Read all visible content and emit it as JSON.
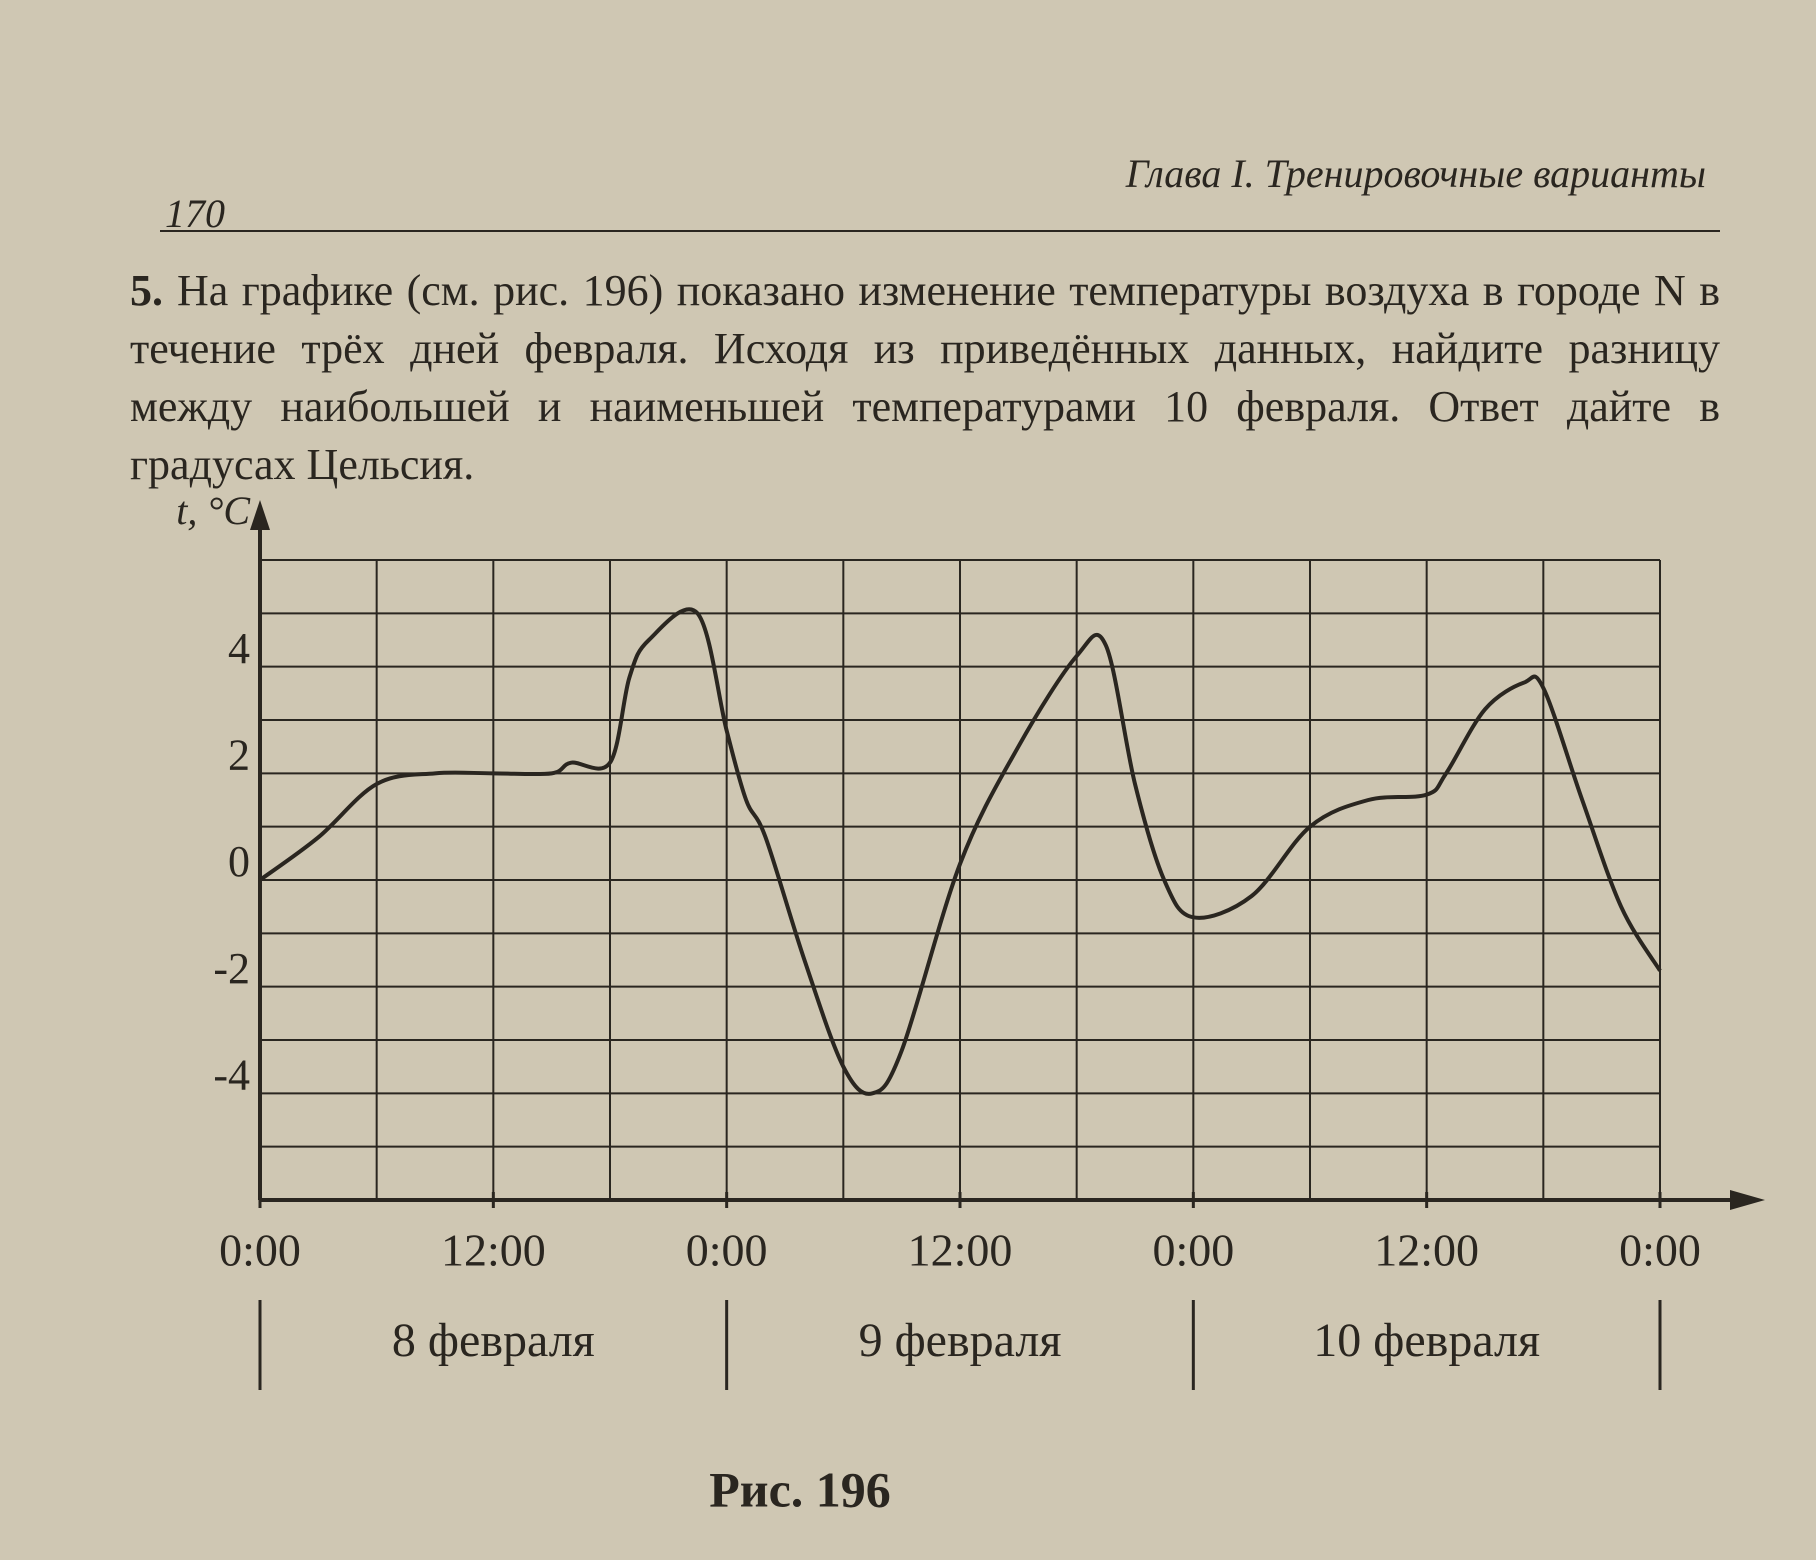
{
  "header": {
    "page_number": "170",
    "chapter": "Глава I. Тренировочные варианты"
  },
  "problem": {
    "number": "5.",
    "text": "На графике (см. рис. 196) показано изменение температуры воздуха в городе N в течение трёх дней февраля. Исходя из приведённых данных, найдите разницу между наибольшей и наименьшей температурами 10 февраля. Ответ дайте в градусах Цельсия."
  },
  "chart_data": {
    "type": "line",
    "y_label": "t, °C",
    "x": [
      0,
      3,
      6,
      9,
      12,
      15,
      16,
      18,
      19,
      20,
      22.5,
      24,
      25,
      26,
      28,
      30,
      31.5,
      33,
      36,
      39,
      42,
      43.5,
      45,
      46.5,
      48,
      51,
      54,
      57,
      60,
      61,
      63,
      65,
      66,
      68,
      70,
      72
    ],
    "series": [
      {
        "color": "#2a2620",
        "values": [
          0,
          0.8,
          1.8,
          2.0,
          2.0,
          2.0,
          2.2,
          2.2,
          3.8,
          4.5,
          5.0,
          2.8,
          1.5,
          0.8,
          -1.5,
          -3.5,
          -4.0,
          -3.2,
          0.3,
          2.5,
          4.2,
          4.4,
          1.8,
          0,
          -0.7,
          -0.3,
          1.0,
          1.5,
          1.6,
          2.0,
          3.2,
          3.7,
          3.6,
          1.5,
          -0.5,
          -1.7
        ]
      }
    ],
    "xlim": [
      0,
      72
    ],
    "ylim": [
      -6,
      6
    ],
    "xticks": [
      {
        "value": 0,
        "label": "0:00"
      },
      {
        "value": 12,
        "label": "12:00"
      },
      {
        "value": 24,
        "label": "0:00"
      },
      {
        "value": 36,
        "label": "12:00"
      },
      {
        "value": 48,
        "label": "0:00"
      },
      {
        "value": 60,
        "label": "12:00"
      },
      {
        "value": 72,
        "label": "0:00"
      }
    ],
    "yticks": [
      -4,
      -2,
      0,
      2,
      4
    ],
    "xgrid": [
      0,
      6,
      12,
      18,
      24,
      30,
      36,
      42,
      48,
      54,
      60,
      66,
      72
    ],
    "ygrid": [
      -6,
      -5,
      -4,
      -3,
      -2,
      -1,
      0,
      1,
      2,
      3,
      4,
      5,
      6
    ],
    "day_labels": [
      "8 февраля",
      "9 февраля",
      "10 февраля"
    ],
    "day_bounds": [
      0,
      24,
      48,
      72
    ]
  },
  "caption": "Рис. 196"
}
